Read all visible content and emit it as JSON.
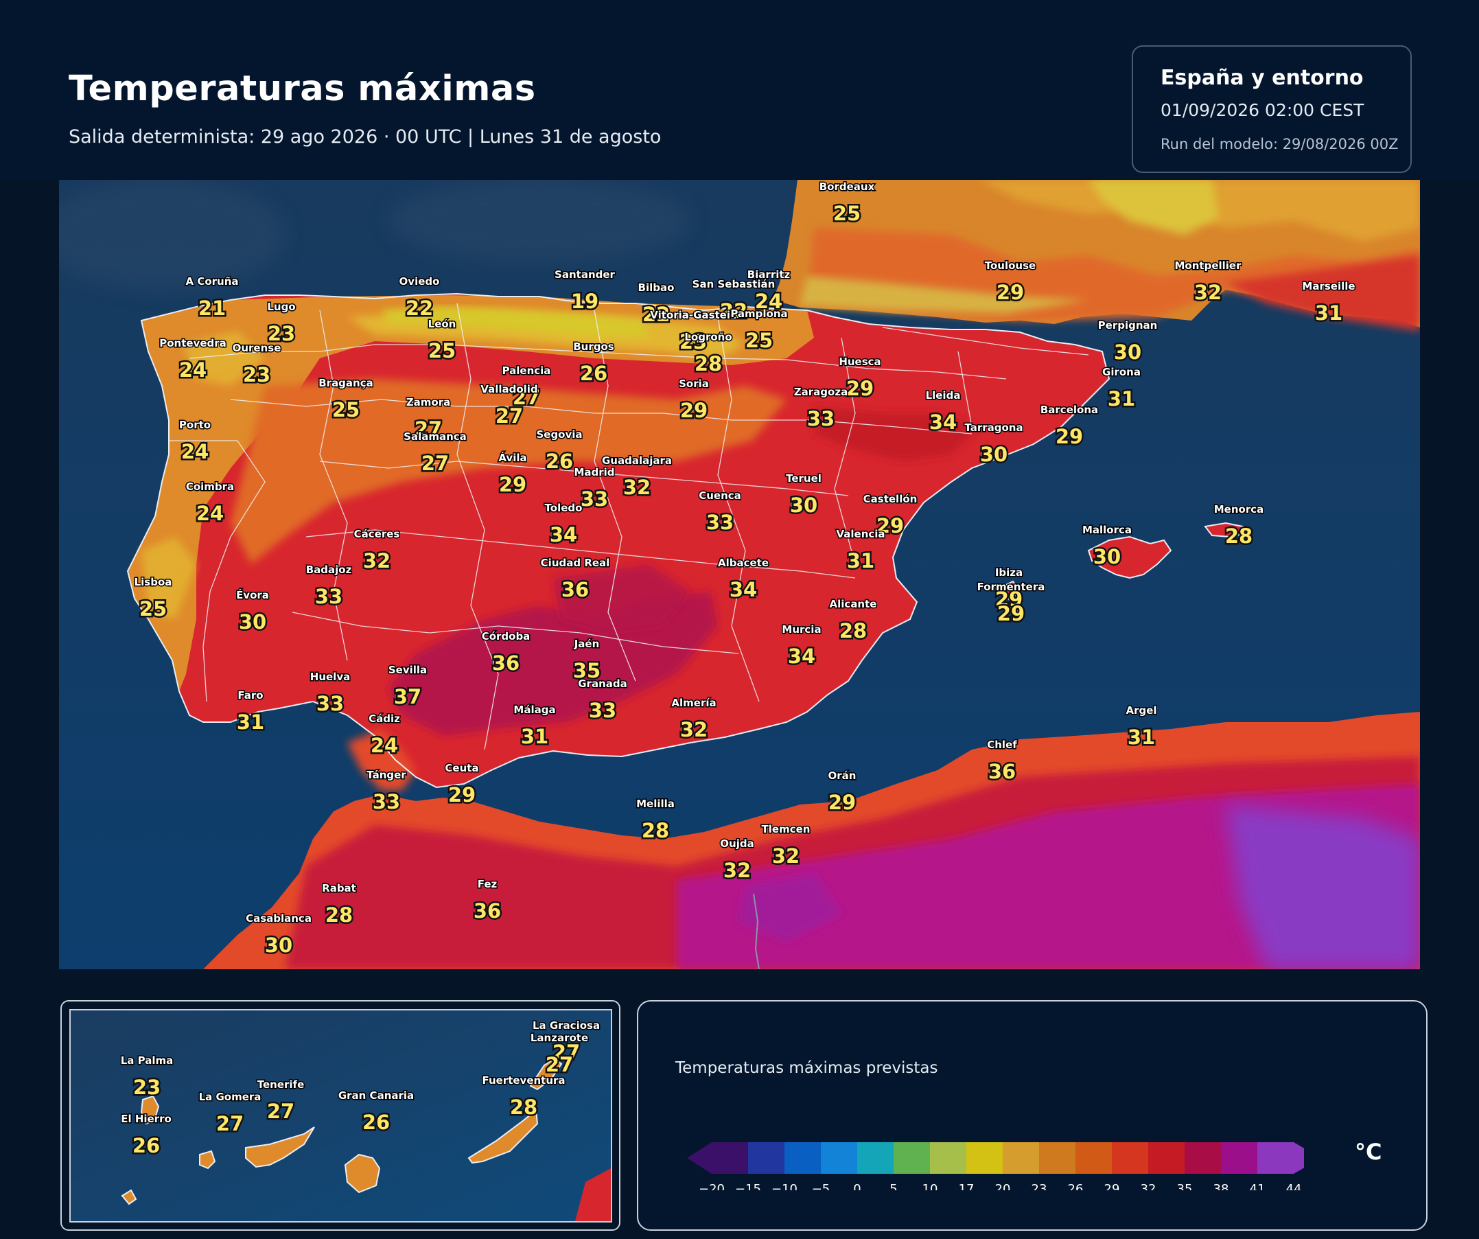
{
  "header": {
    "title": "Temperaturas máximas",
    "subtitle": "Salida determinista: 29 ago 2026 · 00 UTC  |  Lunes 31 de agosto"
  },
  "info": {
    "region": "España y entorno",
    "datetime": "01/09/2026  02:00 CEST",
    "run": "Run del modelo: 29/08/2026 00Z"
  },
  "legend": {
    "title": "Temperaturas máximas previstas",
    "unit": "°C",
    "ticks": [
      "−20",
      "−15",
      "−10",
      "−5",
      "0",
      "5",
      "10",
      "17",
      "20",
      "23",
      "26",
      "29",
      "32",
      "35",
      "38",
      "41",
      "44"
    ],
    "colors": [
      "#3a1068",
      "#21379f",
      "#0a5fc2",
      "#1383d8",
      "#14a6b8",
      "#5fb24f",
      "#a6bf4a",
      "#d3c114",
      "#d59c2e",
      "#cf7a1f",
      "#d05a16",
      "#d5361f",
      "#c51b25",
      "#a90d45",
      "#9c0f8a",
      "#8b37be"
    ]
  },
  "cities": [
    {
      "name": "A Coruña",
      "value": 21
    },
    {
      "name": "Oviedo",
      "value": 22
    },
    {
      "name": "Santander",
      "value": 19
    },
    {
      "name": "Bilbao",
      "value": 22
    },
    {
      "name": "San Sebastián",
      "value": 22
    },
    {
      "name": "Biarritz",
      "value": 24
    },
    {
      "name": "Bordeaux",
      "value": 25
    },
    {
      "name": "Toulouse",
      "value": 29
    },
    {
      "name": "Montpellier",
      "value": 32
    },
    {
      "name": "Marseille",
      "value": 31
    },
    {
      "name": "Lugo",
      "value": 23
    },
    {
      "name": "Pontevedra",
      "value": 24
    },
    {
      "name": "Ourense",
      "value": 23
    },
    {
      "name": "León",
      "value": 25
    },
    {
      "name": "Vitoria-Gasteiz",
      "value": 23
    },
    {
      "name": "Pamplona",
      "value": 25
    },
    {
      "name": "Logroño",
      "value": 28
    },
    {
      "name": "Burgos",
      "value": 26
    },
    {
      "name": "Palencia",
      "value": 27
    },
    {
      "name": "Perpignan",
      "value": 30
    },
    {
      "name": "Huesca",
      "value": 29
    },
    {
      "name": "Girona",
      "value": 31
    },
    {
      "name": "Bragança",
      "value": 25
    },
    {
      "name": "Zamora",
      "value": 27
    },
    {
      "name": "Valladolid",
      "value": 27
    },
    {
      "name": "Soria",
      "value": 29
    },
    {
      "name": "Zaragoza",
      "value": 33
    },
    {
      "name": "Lleida",
      "value": 34
    },
    {
      "name": "Barcelona",
      "value": 29
    },
    {
      "name": "Tarragona",
      "value": 30
    },
    {
      "name": "Porto",
      "value": 24
    },
    {
      "name": "Salamanca",
      "value": 27
    },
    {
      "name": "Segovia",
      "value": 26
    },
    {
      "name": "Ávila",
      "value": 29
    },
    {
      "name": "Madrid",
      "value": 33
    },
    {
      "name": "Guadalajara",
      "value": 32
    },
    {
      "name": "Coimbra",
      "value": 24
    },
    {
      "name": "Teruel",
      "value": 30
    },
    {
      "name": "Castellón",
      "value": 29
    },
    {
      "name": "Cuenca",
      "value": 33
    },
    {
      "name": "Toledo",
      "value": 34
    },
    {
      "name": "Cáceres",
      "value": 32
    },
    {
      "name": "Menorca",
      "value": 28
    },
    {
      "name": "Mallorca",
      "value": 30
    },
    {
      "name": "Valencia",
      "value": 31
    },
    {
      "name": "Badajoz",
      "value": 33
    },
    {
      "name": "Ciudad Real",
      "value": 36
    },
    {
      "name": "Albacete",
      "value": 34
    },
    {
      "name": "Lisboa",
      "value": 25
    },
    {
      "name": "Évora",
      "value": 30
    },
    {
      "name": "Ibiza",
      "value": 29
    },
    {
      "name": "Formentera",
      "value": 29
    },
    {
      "name": "Alicante",
      "value": 28
    },
    {
      "name": "Murcia",
      "value": 34
    },
    {
      "name": "Córdoba",
      "value": 36
    },
    {
      "name": "Jaén",
      "value": 35
    },
    {
      "name": "Sevilla",
      "value": 37
    },
    {
      "name": "Huelva",
      "value": 33
    },
    {
      "name": "Granada",
      "value": 33
    },
    {
      "name": "Faro",
      "value": 31
    },
    {
      "name": "Almería",
      "value": 32
    },
    {
      "name": "Málaga",
      "value": 31
    },
    {
      "name": "Cádiz",
      "value": 24
    },
    {
      "name": "Argel",
      "value": 31
    },
    {
      "name": "Chlef",
      "value": 36
    },
    {
      "name": "Tánger",
      "value": 33
    },
    {
      "name": "Ceuta",
      "value": 29
    },
    {
      "name": "Orán",
      "value": 29
    },
    {
      "name": "Melilla",
      "value": 28
    },
    {
      "name": "Tlemcen",
      "value": 32
    },
    {
      "name": "Oujda",
      "value": 32
    },
    {
      "name": "Rabat",
      "value": 28
    },
    {
      "name": "Fez",
      "value": 36
    },
    {
      "name": "Casablanca",
      "value": 30
    }
  ],
  "canarias": [
    {
      "name": "La Graciosa",
      "value": 27
    },
    {
      "name": "Lanzarote",
      "value": 27
    },
    {
      "name": "La Palma",
      "value": 23
    },
    {
      "name": "Tenerife",
      "value": 27
    },
    {
      "name": "La Gomera",
      "value": 27
    },
    {
      "name": "Gran Canaria",
      "value": 26
    },
    {
      "name": "Fuerteventura",
      "value": 28
    },
    {
      "name": "El Hierro",
      "value": 26
    }
  ]
}
